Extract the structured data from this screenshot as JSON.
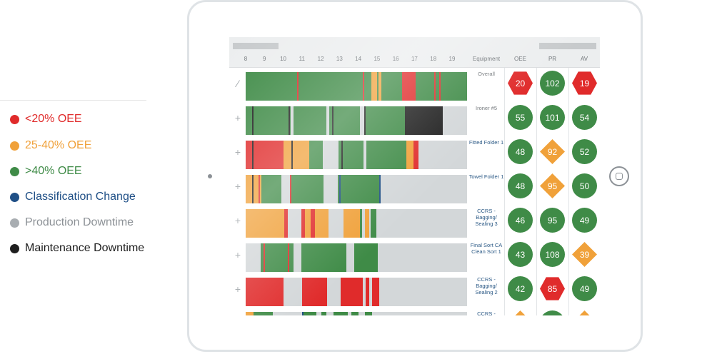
{
  "legend": {
    "items": [
      {
        "label": "<20% OEE",
        "color": "#e02b2b",
        "text_color": "#e02b2b"
      },
      {
        "label": "25-40% OEE",
        "color": "#f0a13a",
        "text_color": "#f0a13a"
      },
      {
        "label": ">40% OEE",
        "color": "#3f8b47",
        "text_color": "#3f8b47"
      },
      {
        "label": "Classification Change",
        "color": "#1f4f86",
        "text_color": "#1f4f86"
      },
      {
        "label": "Production Downtime",
        "color": "#a8adb1",
        "text_color": "#8c9196"
      },
      {
        "label": "Maintenance Downtime",
        "color": "#1e1e1e",
        "text_color": "#1e1e1e"
      }
    ]
  },
  "colors": {
    "red": "#e02b2b",
    "orange": "#f0a13a",
    "green": "#3f8b47",
    "blue": "#1f4f86",
    "gray": "#d3d7d9",
    "black": "#1e1e1e"
  },
  "header": {
    "hours": [
      "8",
      "9",
      "10",
      "11",
      "12",
      "13",
      "14",
      "15",
      "16",
      "17",
      "18",
      "19"
    ],
    "equipment": "Equipment",
    "oee": "OEE",
    "pr": "PR",
    "av": "AV"
  },
  "rows": [
    {
      "toggle": "⁄",
      "equipment": "Overall",
      "segments": [
        {
          "start": 8.0,
          "end": 14.7,
          "status": "green"
        },
        {
          "start": 14.7,
          "end": 15.25,
          "status": "orange"
        },
        {
          "start": 15.25,
          "end": 15.65,
          "status": "green"
        },
        {
          "start": 15.65,
          "end": 16.35,
          "status": "green"
        },
        {
          "start": 16.35,
          "end": 17.05,
          "status": "red"
        },
        {
          "start": 17.05,
          "end": 19.8,
          "status": "green"
        }
      ],
      "marks": [
        {
          "at": 10.75,
          "status": "red"
        },
        {
          "at": 14.25,
          "status": "red"
        },
        {
          "at": 15.0,
          "status": "green"
        },
        {
          "at": 18.05,
          "status": "red"
        },
        {
          "at": 18.3,
          "status": "red"
        }
      ],
      "oee": {
        "value": "20",
        "shape": "hex",
        "status": "red"
      },
      "pr": {
        "value": "102",
        "shape": "circle",
        "status": "green"
      },
      "av": {
        "value": "19",
        "shape": "hex",
        "status": "red"
      }
    },
    {
      "toggle": "+",
      "equipment": "Ironer #5",
      "segments": [
        {
          "start": 8.0,
          "end": 10.4,
          "status": "green"
        },
        {
          "start": 10.55,
          "end": 12.3,
          "status": "green"
        },
        {
          "start": 12.45,
          "end": 14.1,
          "status": "green"
        },
        {
          "start": 14.3,
          "end": 16.5,
          "status": "green"
        },
        {
          "start": 16.5,
          "end": 18.5,
          "status": "black"
        }
      ],
      "marks": [
        {
          "at": 8.35,
          "status": "black"
        },
        {
          "at": 10.3,
          "status": "black"
        },
        {
          "at": 12.6,
          "status": "black"
        },
        {
          "at": 14.3,
          "status": "black"
        }
      ],
      "oee": {
        "value": "55",
        "shape": "circle",
        "status": "green"
      },
      "pr": {
        "value": "101",
        "shape": "circle",
        "status": "green"
      },
      "av": {
        "value": "54",
        "shape": "circle",
        "status": "green"
      }
    },
    {
      "toggle": "+",
      "equipment": "Fitted Folder 1",
      "segments": [
        {
          "start": 8.0,
          "end": 10.0,
          "status": "red"
        },
        {
          "start": 10.0,
          "end": 11.4,
          "status": "orange"
        },
        {
          "start": 11.4,
          "end": 12.1,
          "status": "green"
        },
        {
          "start": 12.95,
          "end": 14.3,
          "status": "green"
        },
        {
          "start": 14.45,
          "end": 16.55,
          "status": "green"
        },
        {
          "start": 16.55,
          "end": 16.95,
          "status": "orange"
        },
        {
          "start": 16.95,
          "end": 17.2,
          "status": "red"
        }
      ],
      "marks": [
        {
          "at": 8.35,
          "status": "black"
        },
        {
          "at": 10.45,
          "status": "black"
        },
        {
          "at": 13.1,
          "status": "black"
        }
      ],
      "oee": {
        "value": "48",
        "shape": "circle",
        "status": "green"
      },
      "pr": {
        "value": "92",
        "shape": "diamond",
        "status": "orange"
      },
      "av": {
        "value": "52",
        "shape": "circle",
        "status": "green"
      }
    },
    {
      "toggle": "+",
      "equipment": "Towel Folder 1",
      "segments": [
        {
          "start": 8.0,
          "end": 8.85,
          "status": "orange"
        },
        {
          "start": 8.85,
          "end": 9.9,
          "status": "green"
        },
        {
          "start": 10.35,
          "end": 12.15,
          "status": "green"
        },
        {
          "start": 12.9,
          "end": 14.2,
          "status": "green"
        },
        {
          "start": 14.2,
          "end": 15.2,
          "status": "green"
        }
      ],
      "marks": [
        {
          "at": 8.35,
          "status": "black"
        },
        {
          "at": 8.7,
          "status": "red"
        },
        {
          "at": 10.35,
          "status": "red"
        },
        {
          "at": 13.0,
          "status": "blue"
        },
        {
          "at": 15.1,
          "status": "blue"
        }
      ],
      "oee": {
        "value": "48",
        "shape": "circle",
        "status": "green"
      },
      "pr": {
        "value": "95",
        "shape": "diamond",
        "status": "orange"
      },
      "av": {
        "value": "50",
        "shape": "circle",
        "status": "green"
      }
    },
    {
      "toggle": "+",
      "equipment": "CCRS - Bagging/ Sealing 3",
      "segments": [
        {
          "start": 8.0,
          "end": 10.05,
          "status": "orange"
        },
        {
          "start": 10.05,
          "end": 10.25,
          "status": "red"
        },
        {
          "start": 10.95,
          "end": 11.15,
          "status": "red"
        },
        {
          "start": 11.15,
          "end": 11.45,
          "status": "orange"
        },
        {
          "start": 11.45,
          "end": 11.7,
          "status": "red"
        },
        {
          "start": 11.7,
          "end": 12.4,
          "status": "orange"
        },
        {
          "start": 13.2,
          "end": 14.1,
          "status": "orange"
        },
        {
          "start": 14.1,
          "end": 14.2,
          "status": "green"
        },
        {
          "start": 14.35,
          "end": 14.6,
          "status": "orange"
        },
        {
          "start": 14.65,
          "end": 14.95,
          "status": "green"
        }
      ],
      "marks": [],
      "oee": {
        "value": "46",
        "shape": "circle",
        "status": "green"
      },
      "pr": {
        "value": "95",
        "shape": "circle",
        "status": "green"
      },
      "av": {
        "value": "49",
        "shape": "circle",
        "status": "green"
      }
    },
    {
      "toggle": "+",
      "equipment": "Final Sort CA Clean Sort 1",
      "segments": [
        {
          "start": 8.8,
          "end": 10.55,
          "status": "green"
        },
        {
          "start": 10.95,
          "end": 13.35,
          "status": "green"
        },
        {
          "start": 13.8,
          "end": 15.05,
          "status": "green"
        }
      ],
      "marks": [
        {
          "at": 8.95,
          "status": "red"
        },
        {
          "at": 10.25,
          "status": "red"
        }
      ],
      "oee": {
        "value": "43",
        "shape": "circle",
        "status": "green"
      },
      "pr": {
        "value": "108",
        "shape": "circle",
        "status": "green"
      },
      "av": {
        "value": "39",
        "shape": "diamond",
        "status": "orange"
      }
    },
    {
      "toggle": "+",
      "equipment": "CCRS - Bagging/ Sealing 2",
      "segments": [
        {
          "start": 8.0,
          "end": 10.0,
          "status": "red"
        },
        {
          "start": 11.0,
          "end": 12.35,
          "status": "red"
        },
        {
          "start": 13.05,
          "end": 14.25,
          "status": "red"
        },
        {
          "start": 14.4,
          "end": 14.6,
          "status": "red"
        },
        {
          "start": 14.75,
          "end": 15.1,
          "status": "red"
        }
      ],
      "marks": [],
      "oee": {
        "value": "42",
        "shape": "circle",
        "status": "green"
      },
      "pr": {
        "value": "85",
        "shape": "hex",
        "status": "red"
      },
      "av": {
        "value": "49",
        "shape": "circle",
        "status": "green"
      }
    },
    {
      "toggle": "+",
      "equipment": "CCRS - Bagging/",
      "segments": [
        {
          "start": 8.0,
          "end": 8.4,
          "status": "orange"
        },
        {
          "start": 8.4,
          "end": 9.45,
          "status": "green"
        },
        {
          "start": 11.0,
          "end": 11.75,
          "status": "green"
        },
        {
          "start": 12.05,
          "end": 12.3,
          "status": "green"
        },
        {
          "start": 12.7,
          "end": 13.45,
          "status": "green"
        },
        {
          "start": 13.65,
          "end": 14.0,
          "status": "green"
        },
        {
          "start": 14.35,
          "end": 14.75,
          "status": "green"
        }
      ],
      "marks": [
        {
          "at": 11.0,
          "status": "blue"
        }
      ],
      "oee": {
        "value": "",
        "shape": "diamond",
        "status": "orange"
      },
      "pr": {
        "value": "",
        "shape": "circle",
        "status": "green"
      },
      "av": {
        "value": "",
        "shape": "diamond",
        "status": "orange"
      }
    }
  ]
}
